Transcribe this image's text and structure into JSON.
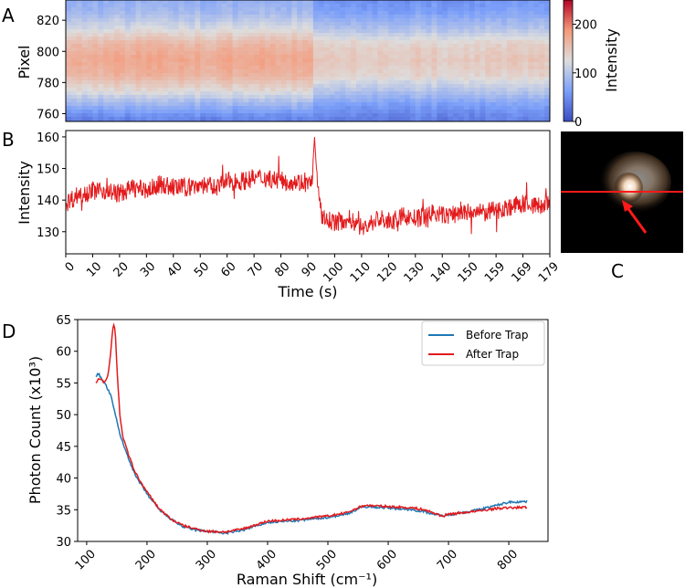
{
  "chart_data": [
    {
      "panel": "A",
      "type": "heatmap",
      "ylabel": "Pixel",
      "y_ticks": [
        760,
        780,
        800,
        820
      ],
      "y_range": [
        755,
        833
      ],
      "x_range_seconds": [
        0,
        180
      ],
      "colormap": "coolwarm",
      "colorbar": {
        "label": "Intensity",
        "ticks": [
          0,
          100,
          200
        ],
        "range": [
          0,
          250
        ]
      },
      "intensity_profile_before_92s": [
        {
          "pixel": 757,
          "intensity": 45
        },
        {
          "pixel": 765,
          "intensity": 80
        },
        {
          "pixel": 775,
          "intensity": 130
        },
        {
          "pixel": 785,
          "intensity": 165
        },
        {
          "pixel": 795,
          "intensity": 175
        },
        {
          "pixel": 805,
          "intensity": 160
        },
        {
          "pixel": 815,
          "intensity": 120
        },
        {
          "pixel": 825,
          "intensity": 90
        },
        {
          "pixel": 832,
          "intensity": 80
        }
      ],
      "intensity_profile_after_92s": [
        {
          "pixel": 757,
          "intensity": 40
        },
        {
          "pixel": 765,
          "intensity": 60
        },
        {
          "pixel": 775,
          "intensity": 100
        },
        {
          "pixel": 785,
          "intensity": 135
        },
        {
          "pixel": 795,
          "intensity": 145
        },
        {
          "pixel": 805,
          "intensity": 135
        },
        {
          "pixel": 815,
          "intensity": 95
        },
        {
          "pixel": 825,
          "intensity": 65
        },
        {
          "pixel": 832,
          "intensity": 55
        }
      ]
    },
    {
      "panel": "B",
      "type": "line",
      "xlabel": "Time (s)",
      "ylabel": "Intensity",
      "x_tick_labels": [
        "0",
        "10",
        "20",
        "30",
        "40",
        "50",
        "60",
        "70",
        "80",
        "90",
        "100",
        "110",
        "120",
        "130",
        "140",
        "150",
        "159",
        "169",
        "179"
      ],
      "x_range": [
        0,
        179
      ],
      "y_ticks": [
        130,
        140,
        150,
        160
      ],
      "y_range": [
        123,
        162
      ],
      "color": "#e31a1c",
      "x": [
        0,
        5,
        10,
        15,
        20,
        25,
        30,
        35,
        40,
        45,
        50,
        55,
        60,
        65,
        70,
        75,
        80,
        85,
        90,
        91,
        92,
        93,
        94,
        95,
        100,
        105,
        110,
        115,
        120,
        125,
        130,
        135,
        140,
        145,
        150,
        155,
        160,
        165,
        170,
        175,
        179
      ],
      "y": [
        139,
        142,
        143,
        143,
        142,
        144,
        143,
        145,
        144,
        144,
        145,
        144,
        146,
        146,
        147,
        147,
        146,
        146,
        145,
        146,
        160,
        145,
        138,
        134,
        133,
        134,
        131,
        134,
        133,
        135,
        134,
        136,
        135,
        136,
        136,
        136,
        137,
        138,
        139,
        138,
        139
      ],
      "noise_amplitude": 3
    },
    {
      "panel": "C",
      "type": "image",
      "label": "C",
      "description_marks": [
        "bright particle",
        "red horizontal line",
        "red arrow"
      ]
    },
    {
      "panel": "D",
      "type": "line",
      "xlabel": "Raman Shift (cm⁻¹)",
      "ylabel": "Photon Count (x10³)",
      "x_ticks": [
        100,
        200,
        300,
        400,
        500,
        600,
        700,
        800
      ],
      "x_range": [
        85,
        865
      ],
      "y_ticks": [
        30,
        35,
        40,
        45,
        50,
        55,
        60,
        65
      ],
      "y_range": [
        30,
        65
      ],
      "legend_position": "top-right",
      "series": [
        {
          "name": "Before Trap",
          "color": "#1f77b4",
          "x": [
            115,
            120,
            125,
            130,
            135,
            140,
            145,
            150,
            155,
            160,
            170,
            180,
            190,
            200,
            220,
            240,
            260,
            280,
            300,
            330,
            360,
            400,
            450,
            500,
            530,
            560,
            600,
            640,
            660,
            690,
            700,
            720,
            750,
            780,
            800,
            830
          ],
          "y": [
            56,
            56.5,
            55.5,
            55,
            54,
            53,
            51,
            49,
            47,
            45.5,
            43,
            40.5,
            39,
            37.5,
            35,
            33.5,
            32.3,
            31.8,
            31.6,
            31.3,
            31.8,
            33,
            33.3,
            33.8,
            34.3,
            35.5,
            35.3,
            35,
            34.7,
            34,
            34.2,
            34.5,
            35,
            35.7,
            36.2,
            36.3
          ]
        },
        {
          "name": "After Trap",
          "color": "#e31a1c",
          "x": [
            115,
            120,
            125,
            130,
            135,
            140,
            143,
            146,
            148,
            150,
            155,
            160,
            170,
            180,
            190,
            200,
            220,
            240,
            260,
            280,
            300,
            330,
            360,
            400,
            450,
            500,
            530,
            560,
            600,
            640,
            660,
            690,
            700,
            720,
            750,
            780,
            800,
            830
          ],
          "y": [
            55,
            55.8,
            55.5,
            55,
            56,
            60,
            63.5,
            64.3,
            62,
            57.5,
            50,
            46.5,
            43.5,
            41,
            39.3,
            37.8,
            35.2,
            33.5,
            32.5,
            32,
            31.6,
            31.5,
            32,
            33.2,
            33.5,
            34,
            34.5,
            35.7,
            35.5,
            35.3,
            35,
            34,
            34.3,
            34.5,
            34.8,
            35.2,
            35.3,
            35.4
          ]
        }
      ]
    }
  ]
}
